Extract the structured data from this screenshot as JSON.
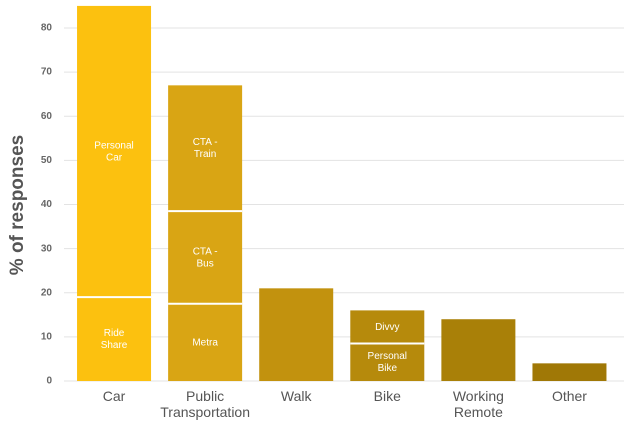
{
  "chart_data": {
    "type": "stacked-bar",
    "y_label": "% of responses",
    "ylim": [
      0,
      86
    ],
    "yticks": [
      0,
      10,
      20,
      30,
      40,
      50,
      60,
      70,
      80
    ],
    "grid": true,
    "bars": [
      {
        "category": [
          "Car"
        ],
        "color": "#fcc10f",
        "segments": [
          {
            "label": [
              "Ride",
              "Share"
            ],
            "value": 19
          },
          {
            "label": [
              "Personal",
              "Car"
            ],
            "value": 66
          }
        ]
      },
      {
        "category": [
          "Public",
          "Transportation"
        ],
        "color": "#d9a514",
        "segments": [
          {
            "label": [
              "Metra"
            ],
            "value": 17.5
          },
          {
            "label": [
              "CTA -",
              "Bus"
            ],
            "value": 21
          },
          {
            "label": [
              "CTA -",
              "Train"
            ],
            "value": 28.5
          }
        ]
      },
      {
        "category": [
          "Walk"
        ],
        "color": "#c2920e",
        "segments": [
          {
            "value": 21
          }
        ]
      },
      {
        "category": [
          "Bike"
        ],
        "color": "#b68a0c",
        "segments": [
          {
            "label": [
              "Personal",
              "Bike"
            ],
            "value": 8.5
          },
          {
            "label": [
              "Divvy"
            ],
            "value": 7.5
          }
        ]
      },
      {
        "category": [
          "Working",
          "Remote"
        ],
        "color": "#a98008",
        "segments": [
          {
            "value": 14
          }
        ]
      },
      {
        "category": [
          "Other"
        ],
        "color": "#a07806",
        "segments": [
          {
            "value": 4
          }
        ]
      }
    ]
  }
}
